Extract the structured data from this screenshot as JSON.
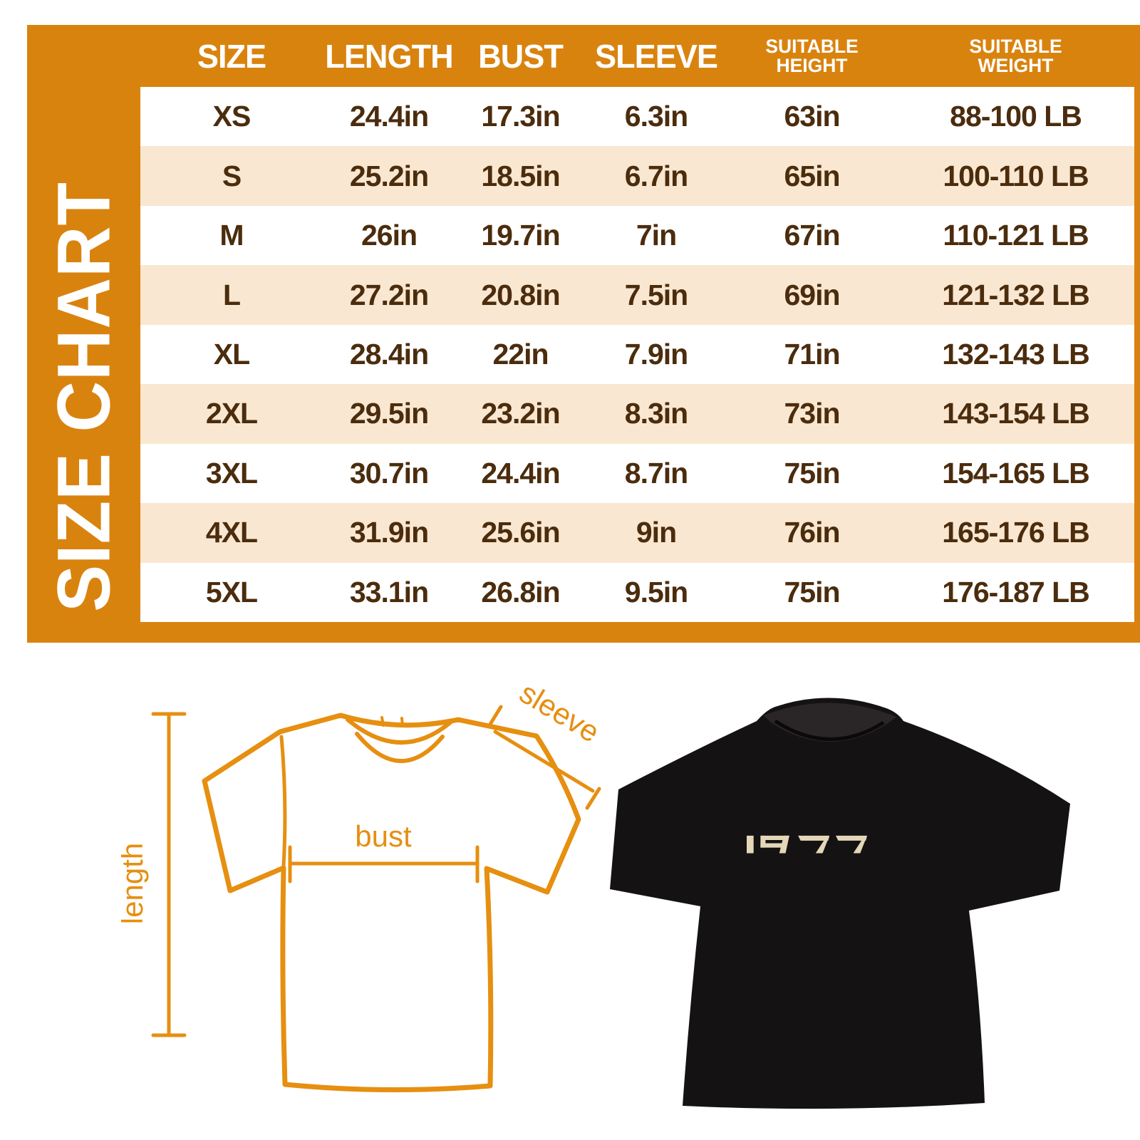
{
  "size_chart": {
    "title": "SIZE CHART"
  },
  "chart_data": {
    "type": "table",
    "title": "SIZE CHART",
    "columns": [
      "SIZE",
      "LENGTH",
      "BUST",
      "SLEEVE",
      "SUITABLE HEIGHT",
      "SUITABLE WEIGHT"
    ],
    "rows": [
      [
        "XS",
        "24.4in",
        "17.3in",
        "6.3in",
        "63in",
        "88-100 LB"
      ],
      [
        "S",
        "25.2in",
        "18.5in",
        "6.7in",
        "65in",
        "100-110 LB"
      ],
      [
        "M",
        "26in",
        "19.7in",
        "7in",
        "67in",
        "110-121 LB"
      ],
      [
        "L",
        "27.2in",
        "20.8in",
        "7.5in",
        "69in",
        "121-132 LB"
      ],
      [
        "XL",
        "28.4in",
        "22in",
        "7.9in",
        "71in",
        "132-143 LB"
      ],
      [
        "2XL",
        "29.5in",
        "23.2in",
        "8.3in",
        "73in",
        "143-154 LB"
      ],
      [
        "3XL",
        "30.7in",
        "24.4in",
        "8.7in",
        "75in",
        "154-165 LB"
      ],
      [
        "4XL",
        "31.9in",
        "25.6in",
        "9in",
        "76in",
        "165-176 LB"
      ],
      [
        "5XL",
        "33.1in",
        "26.8in",
        "9.5in",
        "75in",
        "176-187 LB"
      ]
    ]
  },
  "measurement_diagram": {
    "length_label": "length",
    "bust_label": "bust",
    "sleeve_label": "sleeve"
  },
  "shirt": {
    "print_text": "1977"
  },
  "colors": {
    "frame_orange": "#D9830F",
    "row_peach": "#F9E7D1",
    "text_brown": "#4B2C0D",
    "diagram_orange": "#E68F10",
    "shirt_black": "#151213",
    "print_cream": "#E4D7B8"
  }
}
